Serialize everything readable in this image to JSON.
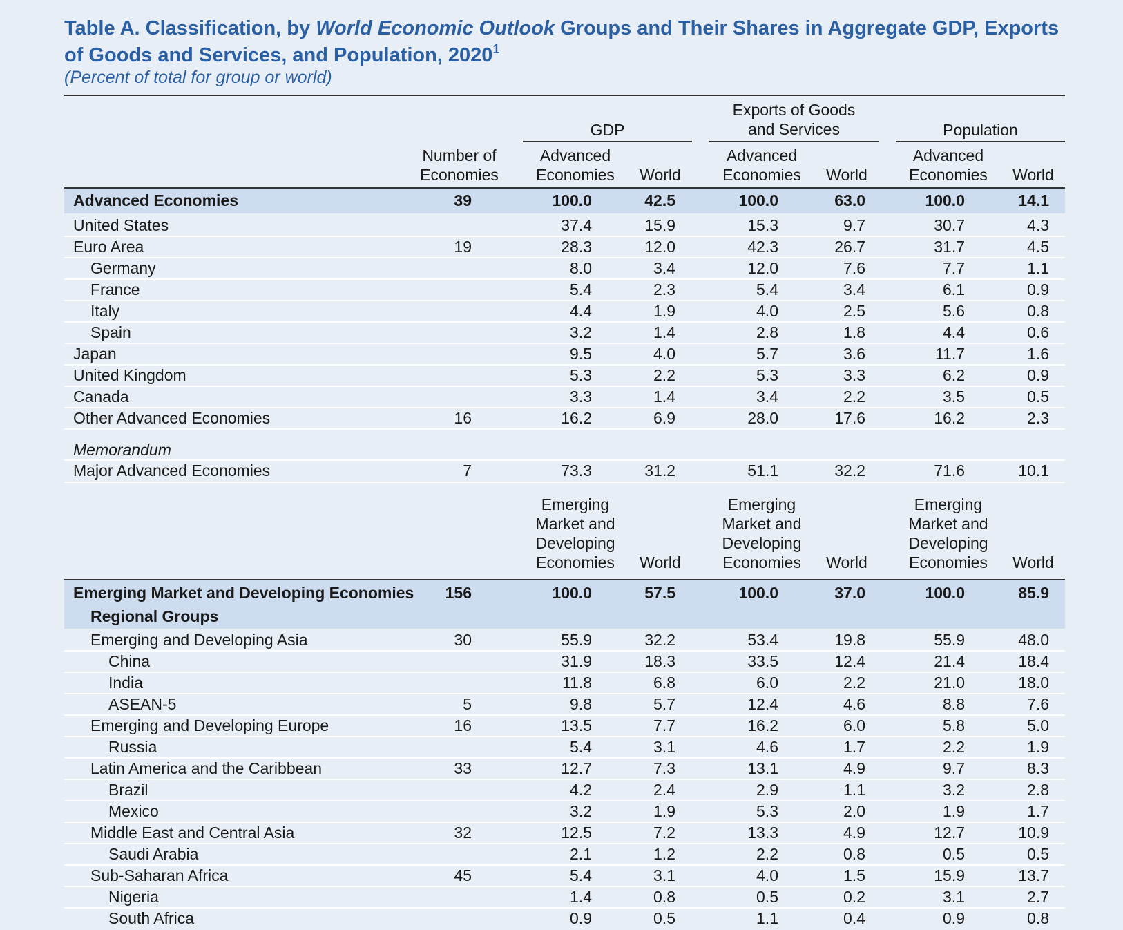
{
  "title_part1": "Table A. Classification, by ",
  "title_italic": "World Economic Outlook",
  "title_part2": " Groups and Their Shares in Aggregate GDP, Exports of Goods and Services, and Population, 2020",
  "title_footnote": "1",
  "subtitle": "(Percent of total for group or world)",
  "headers": {
    "gdp": "GDP",
    "exports_line1": "Exports of Goods",
    "exports_line2": "and Services",
    "population": "Population",
    "number_line1": "Number of",
    "number_line2": "Economies",
    "adv_line1": "Advanced",
    "adv_line2": "Economies",
    "world": "World",
    "emde_line1": "Emerging",
    "emde_line2": "Market and",
    "emde_line3": "Developing",
    "emde_line4": "Economies"
  },
  "advanced_rows": [
    {
      "label": "Advanced Economies",
      "n": "39",
      "v": [
        "100.0",
        "42.5",
        "100.0",
        "63.0",
        "100.0",
        "14.1"
      ]
    },
    {
      "label": "United States",
      "n": "",
      "v": [
        "37.4",
        "15.9",
        "15.3",
        "9.7",
        "30.7",
        "4.3"
      ]
    },
    {
      "label": "Euro Area",
      "n": "19",
      "v": [
        "28.3",
        "12.0",
        "42.3",
        "26.7",
        "31.7",
        "4.5"
      ]
    },
    {
      "label": "Germany",
      "n": "",
      "v": [
        "8.0",
        "3.4",
        "12.0",
        "7.6",
        "7.7",
        "1.1"
      ]
    },
    {
      "label": "France",
      "n": "",
      "v": [
        "5.4",
        "2.3",
        "5.4",
        "3.4",
        "6.1",
        "0.9"
      ]
    },
    {
      "label": "Italy",
      "n": "",
      "v": [
        "4.4",
        "1.9",
        "4.0",
        "2.5",
        "5.6",
        "0.8"
      ]
    },
    {
      "label": "Spain",
      "n": "",
      "v": [
        "3.2",
        "1.4",
        "2.8",
        "1.8",
        "4.4",
        "0.6"
      ]
    },
    {
      "label": "Japan",
      "n": "",
      "v": [
        "9.5",
        "4.0",
        "5.7",
        "3.6",
        "11.7",
        "1.6"
      ]
    },
    {
      "label": "United Kingdom",
      "n": "",
      "v": [
        "5.3",
        "2.2",
        "5.3",
        "3.3",
        "6.2",
        "0.9"
      ]
    },
    {
      "label": "Canada",
      "n": "",
      "v": [
        "3.3",
        "1.4",
        "3.4",
        "2.2",
        "3.5",
        "0.5"
      ]
    },
    {
      "label": "Other Advanced Economies",
      "n": "16",
      "v": [
        "16.2",
        "6.9",
        "28.0",
        "17.6",
        "16.2",
        "2.3"
      ]
    }
  ],
  "memorandum_label": "Memorandum",
  "major_row": {
    "label": "Major Advanced Economies",
    "n": "7",
    "v": [
      "73.3",
      "31.2",
      "51.1",
      "32.2",
      "71.6",
      "10.1"
    ]
  },
  "emde_total": {
    "label": "Emerging Market and Developing Economies",
    "n": "156",
    "v": [
      "100.0",
      "57.5",
      "100.0",
      "37.0",
      "100.0",
      "85.9"
    ]
  },
  "regional_groups_label": "Regional Groups",
  "emde_rows": [
    {
      "label": "Emerging and Developing Asia",
      "n": "30",
      "v": [
        "55.9",
        "32.2",
        "53.4",
        "19.8",
        "55.9",
        "48.0"
      ]
    },
    {
      "label": "China",
      "n": "",
      "v": [
        "31.9",
        "18.3",
        "33.5",
        "12.4",
        "21.4",
        "18.4"
      ]
    },
    {
      "label": "India",
      "n": "",
      "v": [
        "11.8",
        "6.8",
        "6.0",
        "2.2",
        "21.0",
        "18.0"
      ]
    },
    {
      "label": "ASEAN-5",
      "n": "5",
      "v": [
        "9.8",
        "5.7",
        "12.4",
        "4.6",
        "8.8",
        "7.6"
      ]
    },
    {
      "label": "Emerging and Developing Europe",
      "n": "16",
      "v": [
        "13.5",
        "7.7",
        "16.2",
        "6.0",
        "5.8",
        "5.0"
      ]
    },
    {
      "label": "Russia",
      "n": "",
      "v": [
        "5.4",
        "3.1",
        "4.6",
        "1.7",
        "2.2",
        "1.9"
      ]
    },
    {
      "label": "Latin America and the Caribbean",
      "n": "33",
      "v": [
        "12.7",
        "7.3",
        "13.1",
        "4.9",
        "9.7",
        "8.3"
      ]
    },
    {
      "label": "Brazil",
      "n": "",
      "v": [
        "4.2",
        "2.4",
        "2.9",
        "1.1",
        "3.2",
        "2.8"
      ]
    },
    {
      "label": "Mexico",
      "n": "",
      "v": [
        "3.2",
        "1.9",
        "5.3",
        "2.0",
        "1.9",
        "1.7"
      ]
    },
    {
      "label": "Middle East and Central Asia",
      "n": "32",
      "v": [
        "12.5",
        "7.2",
        "13.3",
        "4.9",
        "12.7",
        "10.9"
      ]
    },
    {
      "label": "Saudi Arabia",
      "n": "",
      "v": [
        "2.1",
        "1.2",
        "2.2",
        "0.8",
        "0.5",
        "0.5"
      ]
    },
    {
      "label": "Sub-Saharan Africa",
      "n": "45",
      "v": [
        "5.4",
        "3.1",
        "4.0",
        "1.5",
        "15.9",
        "13.7"
      ]
    },
    {
      "label": "Nigeria",
      "n": "",
      "v": [
        "1.4",
        "0.8",
        "0.5",
        "0.2",
        "3.1",
        "2.7"
      ]
    },
    {
      "label": "South Africa",
      "n": "",
      "v": [
        "0.9",
        "0.5",
        "1.1",
        "0.4",
        "0.9",
        "0.8"
      ]
    }
  ]
}
